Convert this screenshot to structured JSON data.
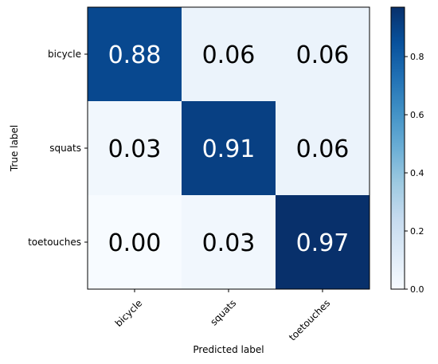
{
  "chart_data": {
    "type": "heatmap",
    "title": "",
    "xlabel": "Predicted label",
    "ylabel": "True label",
    "x_categories": [
      "bicycle",
      "squats",
      "toetouches"
    ],
    "y_categories": [
      "bicycle",
      "squats",
      "toetouches"
    ],
    "values": [
      [
        0.88,
        0.06,
        0.06
      ],
      [
        0.03,
        0.91,
        0.06
      ],
      [
        0.0,
        0.03,
        0.97
      ]
    ],
    "cell_labels": [
      [
        "0.88",
        "0.06",
        "0.06"
      ],
      [
        "0.03",
        "0.91",
        "0.06"
      ],
      [
        "0.00",
        "0.03",
        "0.97"
      ]
    ],
    "colormap": "Blues",
    "colorbar": {
      "range": [
        0.0,
        0.97
      ],
      "ticks": [
        0.0,
        0.2,
        0.4,
        0.6,
        0.8
      ],
      "tick_labels": [
        "0.0",
        "0.2",
        "0.4",
        "0.6",
        "0.8"
      ]
    },
    "grid": false,
    "legend": "colorbar-right"
  }
}
